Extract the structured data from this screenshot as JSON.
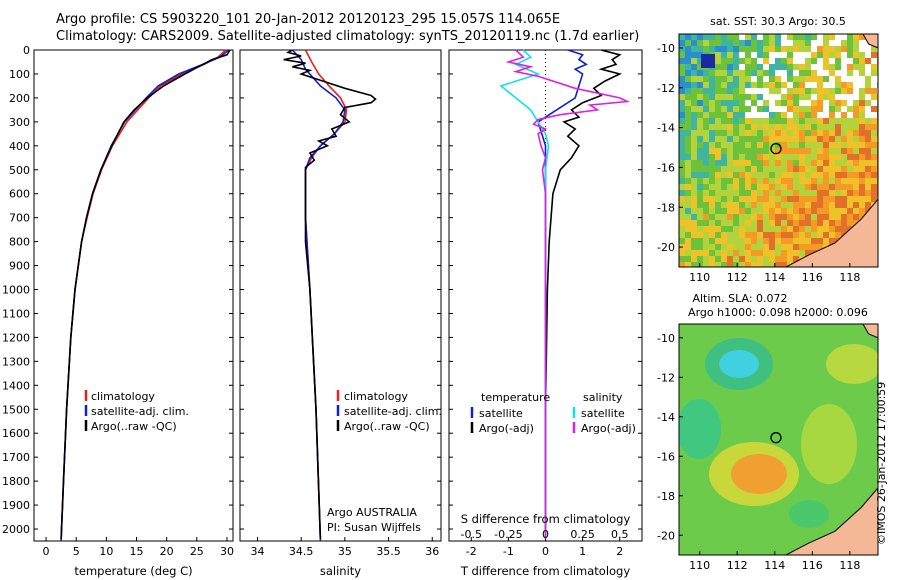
{
  "header": {
    "line1": "Argo profile: CS 5903220_101 20-Jan-2012 20120123_295 15.057S 114.065E",
    "line2": "Climatology: CARS2009. Satellite-adjusted climatology: synTS_20120119.nc (1.7d earlier)"
  },
  "colors": {
    "climatology": "#e8201a",
    "satellite": "#1020d0",
    "argo": "#000000",
    "sal_satellite": "#10e0f0",
    "sal_argo": "#e020e0"
  },
  "chart_data": [
    {
      "id": "temperature",
      "type": "line",
      "xlabel": "temperature (deg C)",
      "ylabel": "",
      "xlim": [
        -2,
        31
      ],
      "ylim": [
        2050,
        0
      ],
      "xticks": [
        0,
        5,
        10,
        15,
        20,
        25,
        30
      ],
      "yticks": [
        0,
        100,
        200,
        300,
        400,
        500,
        600,
        700,
        800,
        900,
        1000,
        1100,
        1200,
        1300,
        1400,
        1500,
        1600,
        1700,
        1800,
        1900,
        2000
      ],
      "series": [
        {
          "name": "climatology",
          "color": "#e8201a",
          "depth": [
            0,
            30,
            60,
            100,
            150,
            200,
            250,
            300,
            400,
            500,
            600,
            700,
            800,
            1000,
            1200,
            1500,
            1800,
            2050
          ],
          "values": [
            29.8,
            28.5,
            26.2,
            22.5,
            19.0,
            17.0,
            15.2,
            13.4,
            11.0,
            9.2,
            7.8,
            6.8,
            5.9,
            4.8,
            4.1,
            3.4,
            2.9,
            2.5
          ]
        },
        {
          "name": "satellite-adj. clim.",
          "color": "#1020d0",
          "depth": [
            0,
            30,
            60,
            100,
            150,
            200,
            250,
            300,
            400,
            500,
            600,
            700,
            800,
            1000,
            1200,
            1500,
            1800,
            2050
          ],
          "values": [
            30.3,
            28.8,
            26.0,
            22.0,
            18.6,
            16.6,
            14.8,
            13.0,
            10.8,
            9.1,
            7.7,
            6.7,
            5.9,
            4.8,
            4.1,
            3.4,
            2.9,
            2.5
          ]
        },
        {
          "name": "Argo(..raw -QC)",
          "color": "#000000",
          "depth": [
            0,
            20,
            40,
            60,
            100,
            150,
            200,
            250,
            300,
            400,
            500,
            600,
            700,
            800,
            1000,
            1200,
            1500,
            1800,
            2040
          ],
          "values": [
            30.5,
            30.0,
            27.5,
            26.0,
            23.0,
            19.5,
            16.8,
            14.6,
            12.9,
            10.9,
            9.1,
            7.7,
            6.7,
            5.9,
            4.8,
            4.1,
            3.4,
            2.9,
            2.5
          ]
        }
      ],
      "legend": [
        "climatology",
        "satellite-adj. clim.",
        "Argo(..raw -QC)"
      ]
    },
    {
      "id": "salinity",
      "type": "line",
      "xlabel": "salinity",
      "xlim": [
        33.8,
        36.1
      ],
      "ylim": [
        2050,
        0
      ],
      "xticks": [
        34,
        34.5,
        35,
        35.5,
        36
      ],
      "series": [
        {
          "name": "climatology",
          "color": "#e8201a",
          "depth": [
            0,
            50,
            100,
            150,
            200,
            250,
            300,
            350,
            400,
            450,
            500,
            700,
            1000,
            1500,
            2050
          ],
          "values": [
            34.55,
            34.62,
            34.7,
            34.82,
            34.95,
            35.02,
            35.0,
            34.88,
            34.72,
            34.62,
            34.55,
            34.55,
            34.6,
            34.67,
            34.72
          ]
        },
        {
          "name": "satellite-adj. clim.",
          "color": "#1020d0",
          "depth": [
            0,
            40,
            80,
            150,
            200,
            250,
            300,
            350,
            400,
            450,
            500,
            700,
            1000,
            1500,
            2050
          ],
          "values": [
            34.4,
            34.5,
            34.55,
            34.72,
            34.9,
            35.0,
            34.98,
            34.88,
            34.72,
            34.6,
            34.55,
            34.55,
            34.6,
            34.67,
            34.72
          ]
        },
        {
          "name": "Argo(..raw -QC)",
          "color": "#000000",
          "depth": [
            0,
            10,
            25,
            40,
            55,
            70,
            85,
            100,
            130,
            160,
            190,
            205,
            220,
            240,
            270,
            300,
            330,
            360,
            380,
            400,
            430,
            460,
            490,
            520,
            600,
            800,
            1000,
            1500,
            2040
          ],
          "values": [
            34.4,
            34.35,
            34.5,
            34.3,
            34.55,
            34.4,
            34.6,
            34.5,
            34.75,
            35.0,
            35.3,
            35.35,
            35.3,
            35.0,
            34.95,
            35.05,
            34.85,
            34.9,
            34.7,
            34.8,
            34.6,
            34.65,
            34.55,
            34.55,
            34.55,
            34.55,
            34.6,
            34.67,
            34.72
          ]
        }
      ],
      "legend": [
        "climatology",
        "satellite-adj. clim.",
        "Argo(..raw -QC)"
      ],
      "annotation": [
        "Argo AUSTRALIA",
        "PI: Susan Wijffels"
      ]
    },
    {
      "id": "difference",
      "type": "line",
      "xlabel": "T difference from climatology",
      "xlabel_top": "S difference from climatology",
      "xlim": [
        -2.6,
        2.6
      ],
      "ylim": [
        2050,
        0
      ],
      "xticks": [
        -2,
        -1,
        0,
        1,
        2
      ],
      "xticks_top": [
        -0.5,
        -0.25,
        0,
        0.25,
        0.5
      ],
      "xticks_top_labels": [
        "-0.5",
        "-0.25",
        "0",
        "0.25",
        "0.5"
      ],
      "series": [
        {
          "name": "temperature satellite",
          "color": "#1020d0",
          "units": "T",
          "depth": [
            0,
            20,
            40,
            60,
            80,
            100,
            150,
            200,
            250,
            300,
            350,
            400,
            500,
            700,
            1000,
            1500,
            2040
          ],
          "values": [
            0.6,
            1.0,
            0.9,
            1.1,
            0.8,
            1.0,
            0.9,
            0.8,
            0.3,
            -0.2,
            -0.1,
            0.0,
            0.0,
            0.0,
            0.0,
            0.0,
            0.0
          ]
        },
        {
          "name": "temperature Argo(-adj)",
          "color": "#000000",
          "units": "T",
          "depth": [
            0,
            20,
            40,
            60,
            80,
            100,
            130,
            160,
            190,
            220,
            250,
            280,
            300,
            330,
            360,
            400,
            450,
            500,
            600,
            800,
            1000,
            1500,
            2040
          ],
          "values": [
            1.5,
            2.0,
            1.8,
            1.9,
            1.5,
            2.0,
            1.6,
            1.3,
            1.5,
            1.0,
            0.7,
            0.9,
            0.5,
            0.8,
            0.6,
            0.9,
            0.7,
            0.4,
            0.2,
            0.1,
            0.05,
            0.0,
            0.0
          ]
        },
        {
          "name": "salinity satellite",
          "color": "#10e0f0",
          "units": "S",
          "depth": [
            0,
            30,
            60,
            100,
            150,
            200,
            250,
            300,
            350,
            400,
            500,
            700,
            1000,
            1500,
            2040
          ],
          "values": [
            -0.15,
            -0.1,
            -0.2,
            -0.05,
            -0.3,
            -0.2,
            -0.1,
            -0.05,
            0.0,
            0.02,
            0.0,
            0.0,
            0.0,
            0.0,
            0.0
          ]
        },
        {
          "name": "salinity Argo(-adj)",
          "color": "#e020e0",
          "units": "S",
          "depth": [
            0,
            30,
            50,
            70,
            90,
            110,
            160,
            200,
            215,
            230,
            250,
            270,
            290,
            310,
            330,
            350,
            400,
            450,
            500,
            600,
            700,
            1000,
            1500,
            2040
          ],
          "values": [
            -0.2,
            -0.15,
            -0.25,
            -0.1,
            -0.2,
            -0.05,
            0.2,
            0.5,
            0.55,
            0.3,
            0.35,
            0.1,
            -0.05,
            -0.08,
            0.0,
            -0.05,
            -0.03,
            0.0,
            -0.02,
            0.0,
            0.0,
            0.0,
            0.0,
            0.0
          ]
        }
      ],
      "legend_titles": [
        "temperature",
        "salinity"
      ],
      "legend_left": [
        "satellite",
        "Argo(-adj)"
      ],
      "legend_right": [
        "satellite",
        "Argo(-adj)"
      ]
    },
    {
      "id": "sst-map",
      "type": "heatmap",
      "title": "sat. SST: 30.3  Argo: 30.5",
      "xticks": [
        110,
        112,
        114,
        116,
        118
      ],
      "yticks": [
        -10,
        -12,
        -14,
        -16,
        -18,
        -20
      ],
      "xlim": [
        108.9,
        119.5
      ],
      "ylim": [
        -21.0,
        -9.3
      ],
      "marker": {
        "lon": 114.065,
        "lat": -15.057
      }
    },
    {
      "id": "sla-map",
      "type": "heatmap",
      "title_line1": "Altim. SLA: 0.072",
      "title_line2": "Argo h1000: 0.098 h2000: 0.096",
      "xticks": [
        110,
        112,
        114,
        116,
        118
      ],
      "yticks": [
        -10,
        -12,
        -14,
        -16,
        -18,
        -20
      ],
      "xlim": [
        108.9,
        119.5
      ],
      "ylim": [
        -21.0,
        -9.3
      ],
      "marker": {
        "lon": 114.065,
        "lat": -15.057
      }
    }
  ],
  "credit": "©IMOS 26-Jan-2012 17:00:59"
}
